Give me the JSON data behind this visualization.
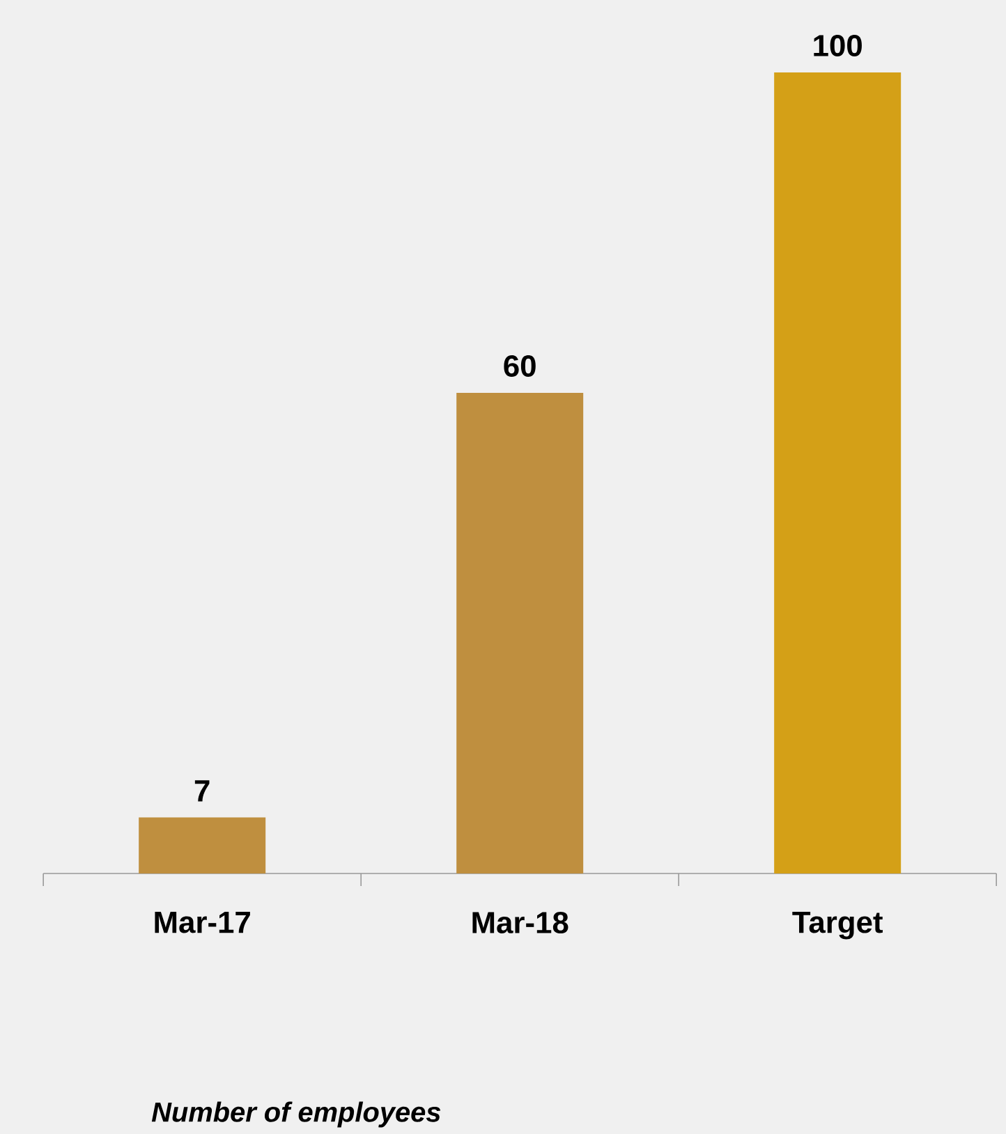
{
  "chart_data": {
    "type": "bar",
    "categories": [
      "Mar-17",
      "Mar-18",
      "Target"
    ],
    "values": [
      7,
      60,
      100
    ],
    "colors": [
      "#bf8f3f",
      "#bf8f3f",
      "#d4a017"
    ],
    "data_labels": true,
    "relative": false,
    "annotations": [
      "*Number of employees*"
    ]
  }
}
